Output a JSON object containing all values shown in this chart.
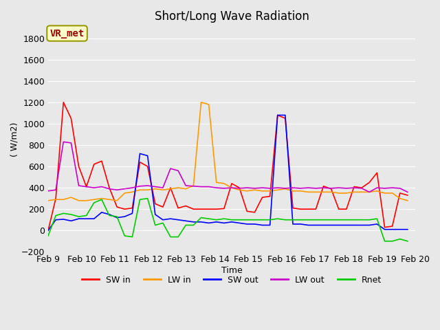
{
  "title": "Short/Long Wave Radiation",
  "xlabel": "Time",
  "ylabel": "( W/m2)",
  "ylim": [
    -200,
    1900
  ],
  "yticks": [
    -200,
    0,
    200,
    400,
    600,
    800,
    1000,
    1200,
    1400,
    1600,
    1800
  ],
  "background_color": "#e8e8e8",
  "plot_bg_color": "#e8e8e8",
  "annotation_text": "VR_met",
  "annotation_bg": "#ffffcc",
  "annotation_border": "#999900",
  "annotation_text_color": "#990000",
  "series_colors": {
    "SW in": "#ff0000",
    "LW in": "#ff9900",
    "SW out": "#0000ff",
    "LW out": "#cc00cc",
    "Rnet": "#00cc00"
  },
  "legend_labels": [
    "SW in",
    "LW in",
    "SW out",
    "LW out",
    "Rnet"
  ],
  "x_start": 9,
  "x_end": 20,
  "xtick_positions": [
    9,
    10,
    11,
    12,
    13,
    14,
    15,
    16,
    17,
    18,
    19,
    20
  ],
  "xtick_labels": [
    "Feb 9",
    "Feb 10",
    "Feb 11",
    "Feb 12",
    "Feb 13",
    "Feb 14",
    "Feb 15",
    "Feb 16",
    "Feb 17",
    "Feb 18",
    "Feb 19",
    "Feb 20"
  ],
  "SW_in": [
    0,
    300,
    1200,
    1050,
    600,
    410,
    620,
    650,
    400,
    220,
    200,
    210,
    640,
    600,
    250,
    220,
    400,
    210,
    230,
    200,
    200,
    200,
    200,
    205,
    440,
    400,
    180,
    170,
    310,
    320,
    1080,
    1050,
    210,
    200,
    200,
    200,
    415,
    390,
    200,
    200,
    410,
    400,
    450,
    540,
    30,
    40,
    350,
    330
  ],
  "LW_in": [
    280,
    290,
    290,
    310,
    280,
    280,
    290,
    300,
    290,
    280,
    350,
    360,
    380,
    380,
    390,
    380,
    390,
    400,
    390,
    420,
    1200,
    1180,
    450,
    440,
    400,
    380,
    370,
    380,
    370,
    370,
    380,
    390,
    370,
    370,
    360,
    360,
    360,
    360,
    350,
    350,
    360,
    360,
    360,
    370,
    350,
    350,
    300,
    280
  ],
  "SW_out": [
    0,
    100,
    105,
    90,
    110,
    110,
    110,
    170,
    150,
    120,
    130,
    160,
    720,
    700,
    150,
    100,
    110,
    100,
    90,
    80,
    80,
    70,
    80,
    70,
    80,
    70,
    60,
    60,
    50,
    50,
    1080,
    1080,
    60,
    60,
    50,
    50,
    50,
    50,
    50,
    50,
    50,
    50,
    50,
    60,
    10,
    10,
    10,
    10
  ],
  "LW_out": [
    370,
    380,
    830,
    820,
    420,
    410,
    400,
    410,
    390,
    380,
    390,
    400,
    415,
    420,
    410,
    400,
    580,
    560,
    420,
    415,
    410,
    410,
    400,
    395,
    400,
    395,
    400,
    395,
    400,
    395,
    400,
    395,
    400,
    395,
    400,
    395,
    400,
    395,
    400,
    395,
    400,
    395,
    360,
    400,
    395,
    400,
    395,
    360
  ],
  "Rnet": [
    -50,
    140,
    160,
    150,
    130,
    140,
    260,
    290,
    140,
    130,
    -50,
    -60,
    290,
    300,
    50,
    70,
    -60,
    -60,
    50,
    50,
    120,
    110,
    100,
    110,
    100,
    100,
    100,
    100,
    100,
    100,
    110,
    100,
    100,
    100,
    100,
    100,
    100,
    100,
    100,
    100,
    100,
    100,
    100,
    110,
    -100,
    -100,
    -80,
    -100
  ],
  "n_points": 48
}
